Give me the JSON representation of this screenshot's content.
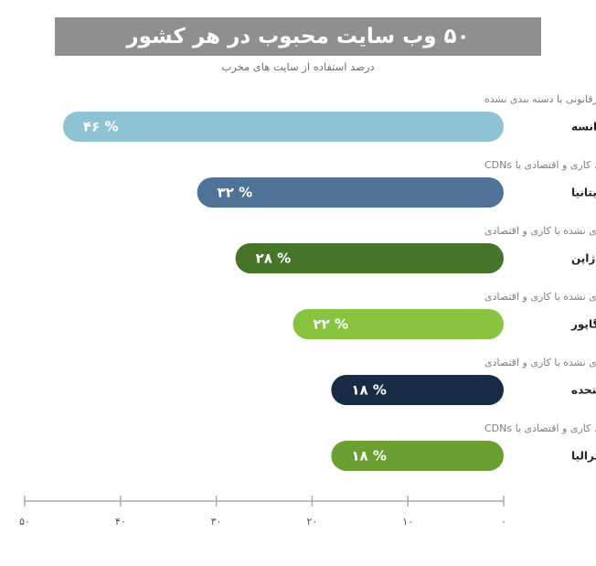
{
  "header": {
    "title": "۵۰ وب سایت محبوب در هر کشور",
    "subtitle": "درصد استفاده از سایت های مخرب"
  },
  "chart_data": {
    "type": "bar",
    "orientation": "horizontal",
    "title": "۵۰ وب سایت محبوب در هر کشور",
    "subtitle": "درصد استفاده از سایت های مخرب",
    "xlim": [
      0,
      50
    ],
    "x_direction": "right-to-left",
    "ticks": [
      {
        "value": 0,
        "label": "۰"
      },
      {
        "value": 10,
        "label": "۱۰"
      },
      {
        "value": 20,
        "label": "۲۰"
      },
      {
        "value": 30,
        "label": "۳۰"
      },
      {
        "value": 40,
        "label": "۴۰"
      },
      {
        "value": 50,
        "label": "۵۰"
      }
    ],
    "categories": [
      {
        "name": "فرانسه",
        "value": 46,
        "label": "۴۶ %",
        "color": "#8ec3d3",
        "description": "سایتهای پارک شده، غیراخلاقی، فرقه‌ای و مخفی، غیرقانونی یا دسته بندی نشده"
      },
      {
        "name": "بریتانیا",
        "value": 32,
        "label": "۳۲ %",
        "color": "#4e7396",
        "description": "سایتهای پارک شده، غیراخلاقی، دسته بندی نشده، کاری و اقتصادی یا CDNs"
      },
      {
        "name": "ژاپن",
        "value": 28,
        "label": "۲۸ %",
        "color": "#467428",
        "description": "سایتهای پارک شده، غیراخلاقی، دسته بندی نشده یا کاری و اقتصادی"
      },
      {
        "name": "سنگاپور",
        "value": 22,
        "label": "۲۲ %",
        "color": "#88c43f",
        "description": "سایتهای پارک شده، غیراخلاقی، شرط بندی، دسته بندی نشده یا کاری و اقتصادی"
      },
      {
        "name": "ایالات متحده",
        "value": 18,
        "label": "۱۸ %",
        "color": "#172b45",
        "description": "سایتهای پارک شده، غیراخلاقی، غیرقانونی، دسته بندی نشده یا کاری و اقتصادی"
      },
      {
        "name": "استرالیا",
        "value": 18,
        "label": "۱۸ %",
        "color": "#6c9f31",
        "description": "سایتهای پارک شده، غیراخلاقی، دسته بندی نشده، کاری و اقتصادی یا CDNs"
      }
    ]
  }
}
